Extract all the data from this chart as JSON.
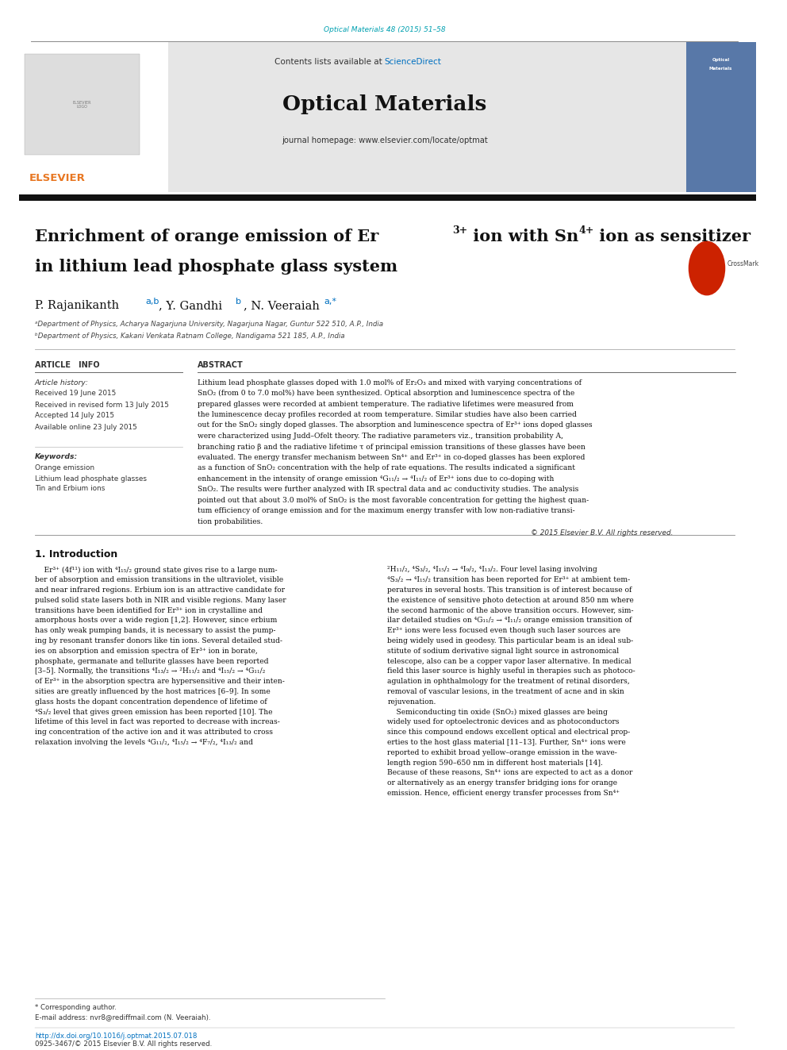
{
  "page_width": 9.92,
  "page_height": 13.23,
  "bg_color": "#ffffff",
  "journal_ref_color": "#00a0b0",
  "journal_ref": "Optical Materials 48 (2015) 51–58",
  "header_bg": "#e6e6e6",
  "sciencedirect_color": "#0070c0",
  "journal_name": "Optical Materials",
  "journal_homepage": "journal homepage: www.elsevier.com/locate/optmat",
  "elsevier_color": "#e87722",
  "affil_a": "ᵃDepartment of Physics, Acharya Nagarjuna University, Nagarjuna Nagar, Guntur 522 510, A.P., India",
  "affil_b": "ᵇDepartment of Physics, Kakani Venkata Ratnam College, Nandigama 521 185, A.P., India",
  "received": "Received 19 June 2015",
  "revised": "Received in revised form 13 July 2015",
  "accepted": "Accepted 14 July 2015",
  "available": "Available online 23 July 2015",
  "keyword1": "Orange emission",
  "keyword2": "Lithium lead phosphate glasses",
  "keyword3": "Tin and Erbium ions",
  "copyright": "© 2015 Elsevier B.V. All rights reserved.",
  "footer_note": "* Corresponding author.",
  "footer_email": "E-mail address: nvr8@rediffmail.com (N. Veeraiah).",
  "footer_doi": "http://dx.doi.org/10.1016/j.optmat.2015.07.018",
  "footer_issn": "0925-3467/© 2015 Elsevier B.V. All rights reserved.",
  "abs_lines": [
    "Lithium lead phosphate glasses doped with 1.0 mol% of Er₂O₃ and mixed with varying concentrations of",
    "SnO₂ (from 0 to 7.0 mol%) have been synthesized. Optical absorption and luminescence spectra of the",
    "prepared glasses were recorded at ambient temperature. The radiative lifetimes were measured from",
    "the luminescence decay profiles recorded at room temperature. Similar studies have also been carried",
    "out for the SnO₂ singly doped glasses. The absorption and luminescence spectra of Er³⁺ ions doped glasses",
    "were characterized using Judd–Ofelt theory. The radiative parameters viz., transition probability A,",
    "branching ratio β and the radiative lifetime τ of principal emission transitions of these glasses have been",
    "evaluated. The energy transfer mechanism between Sn⁴⁺ and Er³⁺ in co-doped glasses has been explored",
    "as a function of SnO₂ concentration with the help of rate equations. The results indicated a significant",
    "enhancement in the intensity of orange emission ⁴G₁₁/₂ → ⁴I₁₁/₂ of Er³⁺ ions due to co-doping with",
    "SnO₂. The results were further analyzed with IR spectral data and ac conductivity studies. The analysis",
    "pointed out that about 3.0 mol% of SnO₂ is the most favorable concentration for getting the highest quan-",
    "tum efficiency of orange emission and for the maximum energy transfer with low non-radiative transi-",
    "tion probabilities."
  ],
  "intro_left": [
    "    Er³⁺ (4f¹¹) ion with ⁴I₁₅/₂ ground state gives rise to a large num-",
    "ber of absorption and emission transitions in the ultraviolet, visible",
    "and near infrared regions. Erbium ion is an attractive candidate for",
    "pulsed solid state lasers both in NIR and visible regions. Many laser",
    "transitions have been identified for Er³⁺ ion in crystalline and",
    "amorphous hosts over a wide region [1,2]. However, since erbium",
    "has only weak pumping bands, it is necessary to assist the pump-",
    "ing by resonant transfer donors like tin ions. Several detailed stud-",
    "ies on absorption and emission spectra of Er³⁺ ion in borate,",
    "phosphate, germanate and tellurite glasses have been reported",
    "[3–5]. Normally, the transitions ⁴I₁₃/₂ → ²H₁₁/₂ and ⁴I₁₅/₂ → ⁴G₁₁/₂",
    "of Er³⁺ in the absorption spectra are hypersensitive and their inten-",
    "sities are greatly influenced by the host matrices [6–9]. In some",
    "glass hosts the dopant concentration dependence of lifetime of",
    "⁴S₃/₂ level that gives green emission has been reported [10]. The",
    "lifetime of this level in fact was reported to decrease with increas-",
    "ing concentration of the active ion and it was attributed to cross",
    "relaxation involving the levels ⁴G₁₁/₂, ⁴I₁₅/₂ → ⁴F₇/₂, ⁴I₁₃/₂ and"
  ],
  "intro_right": [
    "²H₁₁/₂, ⁴S₃/₂, ⁴I₁₅/₂ → ⁴I₉/₂, ⁴I₁₃/₂. Four level lasing involving",
    "⁴S₃/₂ → ⁴I₁₅/₂ transition has been reported for Er³⁺ at ambient tem-",
    "peratures in several hosts. This transition is of interest because of",
    "the existence of sensitive photo detection at around 850 nm where",
    "the second harmonic of the above transition occurs. However, sim-",
    "ilar detailed studies on ⁴G₁₁/₂ → ⁴I₁₁/₂ orange emission transition of",
    "Er³⁺ ions were less focused even though such laser sources are",
    "being widely used in geodesy. This particular beam is an ideal sub-",
    "stitute of sodium derivative signal light source in astronomical",
    "telescope, also can be a copper vapor laser alternative. In medical",
    "field this laser source is highly useful in therapies such as photoco-",
    "agulation in ophthalmology for the treatment of retinal disorders,",
    "removal of vascular lesions, in the treatment of acne and in skin",
    "rejuvenation.",
    "    Semiconducting tin oxide (SnO₂) mixed glasses are being",
    "widely used for optoelectronic devices and as photoconductors",
    "since this compound endows excellent optical and electrical prop-",
    "erties to the host glass material [11–13]. Further, Sn⁴⁺ ions were",
    "reported to exhibit broad yellow–orange emission in the wave-",
    "length region 590–650 nm in different host materials [14].",
    "Because of these reasons, Sn⁴⁺ ions are expected to act as a donor",
    "or alternatively as an energy transfer bridging ions for orange",
    "emission. Hence, efficient energy transfer processes from Sn⁴⁺"
  ]
}
